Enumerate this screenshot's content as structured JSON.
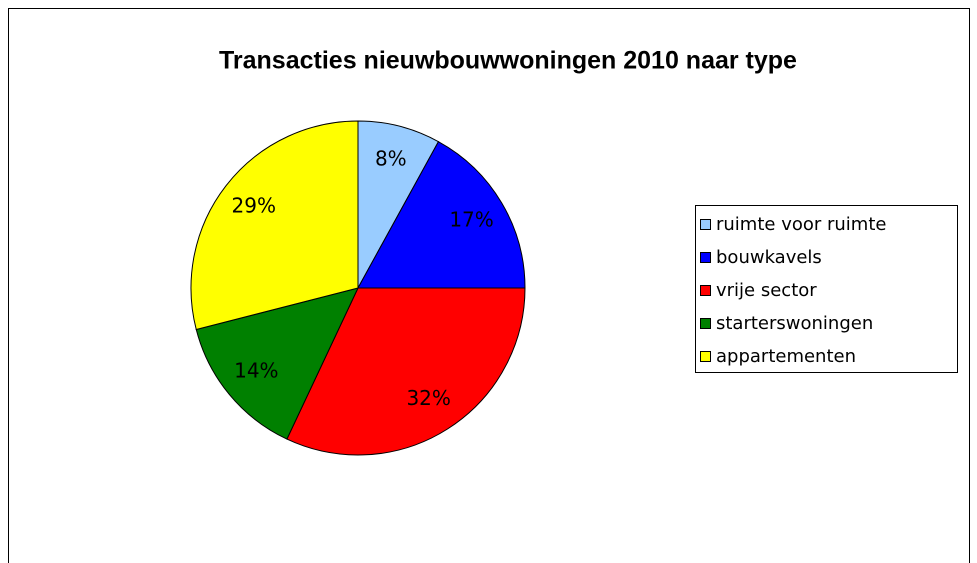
{
  "chart_data": {
    "type": "pie",
    "title": "Transacties nieuwbouwwoningen 2010 naar type",
    "categories": [
      "ruimte voor ruimte",
      "bouwkavels",
      "vrije sector",
      "starterswoningen",
      "appartementen"
    ],
    "values": [
      8,
      17,
      32,
      14,
      29
    ],
    "value_labels": [
      "8%",
      "17%",
      "32%",
      "14%",
      "29%"
    ],
    "colors": [
      "#99ccff",
      "#0000ff",
      "#ff0000",
      "#008000",
      "#ffff00"
    ],
    "legend": "right"
  }
}
